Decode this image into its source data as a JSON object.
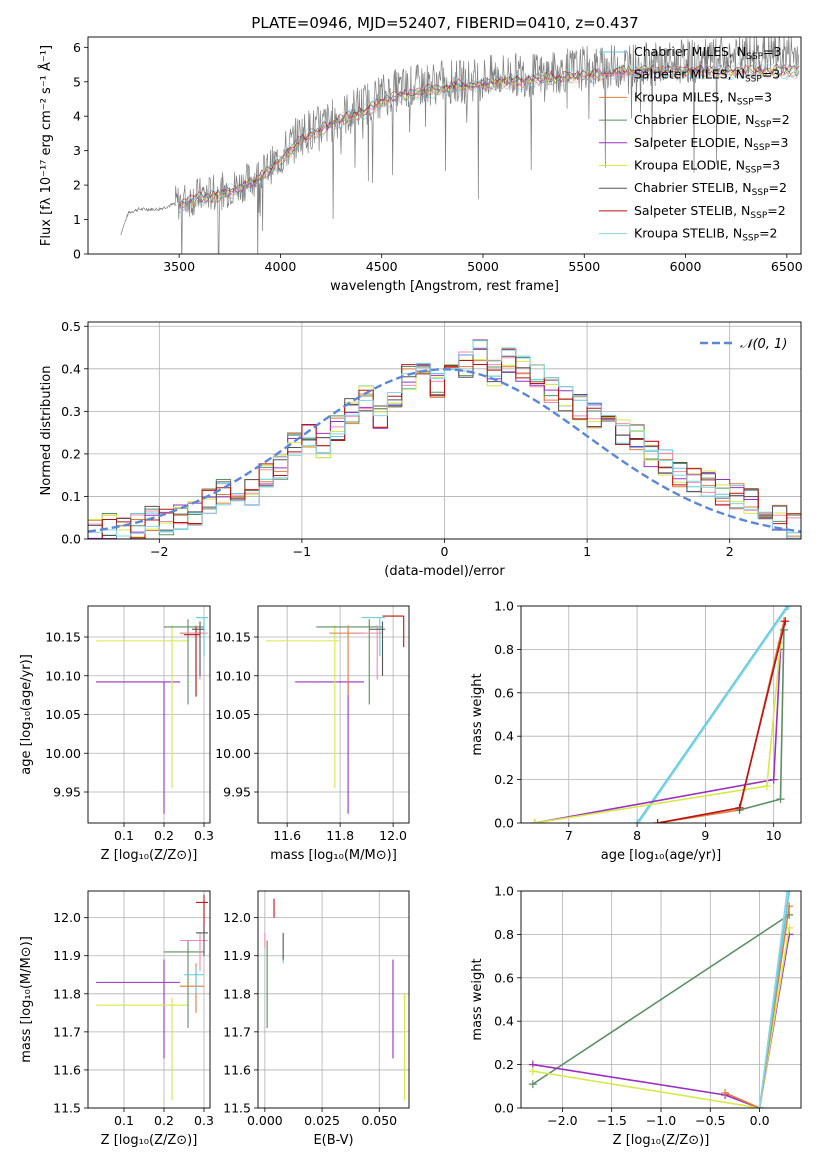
{
  "figure": {
    "title": "PLATE=0946, MJD=52407, FIBERID=0410, z=0.437"
  },
  "model_legend": [
    {
      "label": "Chabrier MILES, N",
      "sub": "SSP",
      "suffix": "=3",
      "color": "#5ec8dc"
    },
    {
      "label": "Salpeter MILES, N",
      "sub": "SSP",
      "suffix": "=3",
      "color": "#f28bb0"
    },
    {
      "label": "Kroupa MILES, N",
      "sub": "SSP",
      "suffix": "=3",
      "color": "#e07b39"
    },
    {
      "label": "Chabrier ELODIE, N",
      "sub": "SSP",
      "suffix": "=2",
      "color": "#5c8f63"
    },
    {
      "label": "Salpeter ELODIE, N",
      "sub": "SSP",
      "suffix": "=3",
      "color": "#9b30c0"
    },
    {
      "label": "Kroupa ELODIE, N",
      "sub": "SSP",
      "suffix": "=3",
      "color": "#d6e84a"
    },
    {
      "label": "Chabrier STELIB, N",
      "sub": "SSP",
      "suffix": "=2",
      "color": "#555555"
    },
    {
      "label": "Salpeter STELIB, N",
      "sub": "SSP",
      "suffix": "=2",
      "color": "#b81414"
    },
    {
      "label": "Kroupa STELIB, N",
      "sub": "SSP",
      "suffix": "=2",
      "color": "#88d4e8"
    }
  ],
  "chart_data": [
    {
      "id": "spectrum",
      "type": "line",
      "xlabel": "wavelength [Angstrom, rest frame]",
      "ylabel": "Flux [fλ 10⁻¹⁷ erg cm⁻² s⁻¹ Å⁻¹]",
      "xlim": [
        3050,
        6570
      ],
      "ylim": [
        0,
        6.3
      ],
      "xticks": [
        3500,
        4000,
        4500,
        5000,
        5500,
        6000,
        6500
      ],
      "yticks": [
        0,
        1,
        2,
        3,
        4,
        5,
        6
      ],
      "grid": false,
      "legend": "upper right",
      "series": [
        {
          "name": "data",
          "color": "#808080",
          "x": [
            3200,
            3250,
            3300,
            3400,
            3500,
            3600,
            3700,
            3800,
            3900,
            4000,
            4100,
            4200,
            4300,
            4400,
            4500,
            4600,
            4700,
            4800,
            4900,
            5000,
            5100,
            5200,
            5300,
            5400,
            5500,
            5600,
            5700,
            5800,
            5900,
            6000,
            6100,
            6200,
            6300,
            6400,
            6500
          ],
          "y": [
            0.4,
            1.2,
            1.3,
            1.3,
            1.5,
            1.7,
            1.8,
            2.0,
            2.3,
            2.8,
            3.5,
            3.7,
            4.0,
            4.3,
            4.6,
            4.8,
            4.9,
            5.0,
            5.0,
            5.1,
            5.2,
            5.2,
            5.2,
            5.3,
            5.4,
            5.4,
            5.5,
            5.5,
            5.5,
            5.6,
            5.6,
            5.7,
            5.7,
            5.8,
            5.8
          ]
        },
        {
          "name": "model",
          "color": "#e07b39",
          "x": [
            3500,
            3600,
            3700,
            3800,
            3900,
            4000,
            4100,
            4200,
            4300,
            4400,
            4500,
            4600,
            4700,
            4800,
            4900,
            5000,
            5100,
            5200,
            5300,
            5400,
            5500,
            5600,
            5700,
            5800
          ],
          "y": [
            1.4,
            1.6,
            1.7,
            1.9,
            2.2,
            2.7,
            3.3,
            3.6,
            3.9,
            4.1,
            4.4,
            4.6,
            4.7,
            4.8,
            4.9,
            4.9,
            5.0,
            5.0,
            5.1,
            5.1,
            5.2,
            5.2,
            5.3,
            5.3
          ]
        }
      ]
    },
    {
      "id": "residuals",
      "type": "line",
      "xlabel": "(data-model)/error",
      "ylabel": "Normed distribution",
      "xlim": [
        -2.5,
        2.5
      ],
      "ylim": [
        0,
        0.51
      ],
      "xticks": [
        -2,
        -1,
        0,
        1,
        2
      ],
      "yticks": [
        0.0,
        0.1,
        0.2,
        0.3,
        0.4,
        0.5
      ],
      "grid": true,
      "legend": "upper right",
      "gaussian_label": "𝒩(0, 1)",
      "gaussian_color": "#5b87d6",
      "histogram": {
        "bin_width": 0.1,
        "x_start": -2.5,
        "values": [
          0.02,
          0.03,
          0.02,
          0.03,
          0.05,
          0.04,
          0.05,
          0.06,
          0.09,
          0.11,
          0.12,
          0.11,
          0.15,
          0.17,
          0.22,
          0.24,
          0.22,
          0.26,
          0.3,
          0.33,
          0.29,
          0.34,
          0.38,
          0.4,
          0.36,
          0.38,
          0.41,
          0.44,
          0.39,
          0.42,
          0.4,
          0.38,
          0.35,
          0.33,
          0.31,
          0.29,
          0.27,
          0.25,
          0.24,
          0.2,
          0.18,
          0.15,
          0.14,
          0.13,
          0.11,
          0.1,
          0.09,
          0.07,
          0.05,
          0.03
        ]
      }
    },
    {
      "id": "age_vs_Z",
      "type": "scatter",
      "xlabel": "Z [log₁₀(Z/Z⊙)]",
      "ylabel": "age  [log₁₀(age/yr)]",
      "xlim": [
        0.01,
        0.315
      ],
      "ylim": [
        9.91,
        10.19
      ],
      "xticks": [
        0.1,
        0.2,
        0.3
      ],
      "yticks": [
        9.95,
        10.0,
        10.05,
        10.1,
        10.15
      ],
      "grid": true,
      "points": [
        {
          "color": "#9b30c0",
          "x": 0.2,
          "y": 10.092,
          "xerr": [
            0.17,
            0.04
          ],
          "yerr": [
            0.17,
            0.0
          ]
        },
        {
          "color": "#d6e84a",
          "x": 0.22,
          "y": 10.145,
          "xerr": [
            0.19,
            0.04
          ],
          "yerr": [
            0.19,
            0.02
          ]
        },
        {
          "color": "#5c8f63",
          "x": 0.26,
          "y": 10.163,
          "xerr": [
            0.06,
            0.04
          ],
          "yerr": [
            0.1,
            0.01
          ]
        },
        {
          "color": "#e07b39",
          "x": 0.28,
          "y": 10.155,
          "xerr": [
            0.04,
            0.02
          ],
          "yerr": [
            0.08,
            0.01
          ]
        },
        {
          "color": "#b81414",
          "x": 0.28,
          "y": 10.153,
          "xerr": [
            0.03,
            0.01
          ],
          "yerr": [
            0.08,
            0.01
          ]
        },
        {
          "color": "#5ec8dc",
          "x": 0.3,
          "y": 10.175,
          "xerr": [
            0.02,
            0.01
          ],
          "yerr": [
            0.05,
            0.0
          ]
        },
        {
          "color": "#f28bb0",
          "x": 0.29,
          "y": 10.155,
          "xerr": [
            0.04,
            0.02
          ],
          "yerr": [
            0.06,
            0.01
          ]
        },
        {
          "color": "#555555",
          "x": 0.29,
          "y": 10.16,
          "xerr": [
            0.02,
            0.01
          ],
          "yerr": [
            0.06,
            0.01
          ]
        }
      ]
    },
    {
      "id": "age_vs_mass",
      "type": "scatter",
      "xlabel": "mass [log₁₀(M/M⊙)]",
      "ylabel": "",
      "xlim": [
        11.49,
        12.06
      ],
      "ylim": [
        9.91,
        10.19
      ],
      "xticks": [
        11.6,
        11.8,
        12.0
      ],
      "yticks": [
        9.95,
        10.0,
        10.05,
        10.1,
        10.15
      ],
      "grid": true,
      "points": [
        {
          "color": "#9b30c0",
          "x": 11.83,
          "y": 10.092,
          "xerr": [
            0.2,
            0.06
          ],
          "yerr": [
            0.17,
            0.0
          ]
        },
        {
          "color": "#d6e84a",
          "x": 11.78,
          "y": 10.145,
          "xerr": [
            0.26,
            0.02
          ],
          "yerr": [
            0.19,
            0.02
          ]
        },
        {
          "color": "#5c8f63",
          "x": 11.91,
          "y": 10.163,
          "xerr": [
            0.2,
            0.05
          ],
          "yerr": [
            0.1,
            0.01
          ]
        },
        {
          "color": "#e07b39",
          "x": 11.83,
          "y": 10.155,
          "xerr": [
            0.07,
            0.06
          ],
          "yerr": [
            0.08,
            0.01
          ]
        },
        {
          "color": "#b81414",
          "x": 12.04,
          "y": 10.177,
          "xerr": [
            0.08,
            0.0
          ],
          "yerr": [
            0.04,
            0.0
          ]
        },
        {
          "color": "#5ec8dc",
          "x": 11.95,
          "y": 10.175,
          "xerr": [
            0.07,
            0.02
          ],
          "yerr": [
            0.05,
            0.0
          ]
        },
        {
          "color": "#f28bb0",
          "x": 11.94,
          "y": 10.155,
          "xerr": [
            0.08,
            0.02
          ],
          "yerr": [
            0.06,
            0.01
          ]
        },
        {
          "color": "#555555",
          "x": 11.96,
          "y": 10.16,
          "xerr": [
            0.05,
            0.01
          ],
          "yerr": [
            0.06,
            0.01
          ]
        }
      ]
    },
    {
      "id": "weight_vs_age",
      "type": "line",
      "xlabel": "age  [log₁₀(age/yr)]",
      "ylabel": "mass weight",
      "xlim": [
        6.3,
        10.4
      ],
      "ylim": [
        0,
        1.0
      ],
      "xticks": [
        7,
        8,
        9,
        10
      ],
      "yticks": [
        0.0,
        0.2,
        0.4,
        0.6,
        0.8,
        1.0
      ],
      "grid": true,
      "series": [
        {
          "color": "#5ec8dc",
          "x": [
            8.0,
            10.2
          ],
          "y": [
            0.0,
            1.0
          ]
        },
        {
          "color": "#88d4e8",
          "x": [
            8.02,
            10.22
          ],
          "y": [
            0.0,
            1.0
          ]
        },
        {
          "color": "#9b30c0",
          "x": [
            6.5,
            10.0,
            10.1
          ],
          "y": [
            0.0,
            0.2,
            0.8
          ]
        },
        {
          "color": "#d6e84a",
          "x": [
            6.5,
            9.9,
            10.1
          ],
          "y": [
            0.0,
            0.17,
            0.83
          ]
        },
        {
          "color": "#e07b39",
          "x": [
            8.3,
            9.5,
            10.15
          ],
          "y": [
            0.0,
            0.06,
            0.93
          ]
        },
        {
          "color": "#5c8f63",
          "x": [
            9.5,
            10.1,
            10.15
          ],
          "y": [
            0.06,
            0.11,
            0.89
          ]
        },
        {
          "color": "#b81414",
          "x": [
            8.3,
            9.5,
            10.17
          ],
          "y": [
            0.0,
            0.07,
            0.93
          ]
        }
      ]
    },
    {
      "id": "mass_vs_Z",
      "type": "scatter",
      "xlabel": "Z [log₁₀(Z/Z⊙)]",
      "ylabel": "mass [log₁₀(M/M⊙)]",
      "xlim": [
        0.01,
        0.315
      ],
      "ylim": [
        11.5,
        12.07
      ],
      "xticks": [
        0.1,
        0.2,
        0.3
      ],
      "yticks": [
        11.5,
        11.6,
        11.7,
        11.8,
        11.9,
        12.0
      ],
      "grid": true,
      "points": [
        {
          "color": "#9b30c0",
          "x": 0.2,
          "y": 11.83,
          "xerr": [
            0.17,
            0.04
          ],
          "yerr": [
            0.2,
            0.06
          ]
        },
        {
          "color": "#d6e84a",
          "x": 0.22,
          "y": 11.77,
          "xerr": [
            0.19,
            0.04
          ],
          "yerr": [
            0.25,
            0.02
          ]
        },
        {
          "color": "#5c8f63",
          "x": 0.26,
          "y": 11.91,
          "xerr": [
            0.06,
            0.04
          ],
          "yerr": [
            0.2,
            0.03
          ]
        },
        {
          "color": "#e07b39",
          "x": 0.28,
          "y": 11.82,
          "xerr": [
            0.04,
            0.02
          ],
          "yerr": [
            0.07,
            0.06
          ]
        },
        {
          "color": "#b81414",
          "x": 0.3,
          "y": 12.04,
          "xerr": [
            0.02,
            0.01
          ],
          "yerr": [
            0.08,
            0.02
          ]
        },
        {
          "color": "#5ec8dc",
          "x": 0.28,
          "y": 11.85,
          "xerr": [
            0.03,
            0.02
          ],
          "yerr": [
            0.05,
            0.02
          ]
        },
        {
          "color": "#f28bb0",
          "x": 0.29,
          "y": 11.94,
          "xerr": [
            0.05,
            0.02
          ],
          "yerr": [
            0.08,
            0.02
          ]
        },
        {
          "color": "#555555",
          "x": 0.3,
          "y": 11.96,
          "xerr": [
            0.02,
            0.01
          ],
          "yerr": [
            0.06,
            0.02
          ]
        }
      ]
    },
    {
      "id": "mass_vs_ebv",
      "type": "scatter",
      "xlabel": "E(B-V)",
      "ylabel": "",
      "xlim": [
        -0.003,
        0.063
      ],
      "ylim": [
        11.5,
        12.07
      ],
      "xticks": [
        0.0,
        0.025,
        0.05
      ],
      "yticks": [
        11.5,
        11.6,
        11.7,
        11.8,
        11.9,
        12.0
      ],
      "grid": true,
      "points": [
        {
          "color": "#9b30c0",
          "x": 0.056,
          "y": 11.83,
          "yerr": [
            0.2,
            0.06
          ]
        },
        {
          "color": "#d6e84a",
          "x": 0.061,
          "y": 11.77,
          "yerr": [
            0.25,
            0.03
          ]
        },
        {
          "color": "#5c8f63",
          "x": 0.001,
          "y": 11.91,
          "yerr": [
            0.2,
            0.03
          ]
        },
        {
          "color": "#b81414",
          "x": 0.004,
          "y": 12.04,
          "yerr": [
            0.04,
            0.01
          ]
        },
        {
          "color": "#5ec8dc",
          "x": 0.008,
          "y": 11.9,
          "yerr": [
            0.02,
            0.0
          ]
        },
        {
          "color": "#555555",
          "x": 0.008,
          "y": 11.94,
          "yerr": [
            0.05,
            0.02
          ]
        },
        {
          "color": "#f28bb0",
          "x": 0.0,
          "y": 11.95,
          "yerr": [
            0.03,
            0.01
          ]
        }
      ]
    },
    {
      "id": "weight_vs_Z",
      "type": "line",
      "xlabel": "Z [log₁₀(Z/Z⊙)]",
      "ylabel": "mass weight",
      "xlim": [
        -2.42,
        0.42
      ],
      "ylim": [
        0,
        1.0
      ],
      "xticks": [
        -2.0,
        -1.5,
        -1.0,
        -0.5,
        0.0
      ],
      "yticks": [
        0.0,
        0.2,
        0.4,
        0.6,
        0.8,
        1.0
      ],
      "grid": true,
      "series": [
        {
          "color": "#5c8f63",
          "x": [
            -2.3,
            0.3
          ],
          "y": [
            0.11,
            0.89
          ]
        },
        {
          "color": "#9b30c0",
          "x": [
            -2.3,
            -0.35,
            0.0,
            0.3
          ],
          "y": [
            0.2,
            0.06,
            0.0,
            0.8
          ]
        },
        {
          "color": "#d6e84a",
          "x": [
            -2.3,
            0.0,
            0.3
          ],
          "y": [
            0.17,
            0.0,
            0.83
          ]
        },
        {
          "color": "#e07b39",
          "x": [
            -0.35,
            0.0,
            0.3
          ],
          "y": [
            0.07,
            0.0,
            0.93
          ]
        },
        {
          "color": "#5ec8dc",
          "x": [
            0.0,
            0.3
          ],
          "y": [
            0.0,
            1.0
          ]
        },
        {
          "color": "#88d4e8",
          "x": [
            0.0,
            0.28
          ],
          "y": [
            0.0,
            1.0
          ]
        }
      ]
    }
  ]
}
